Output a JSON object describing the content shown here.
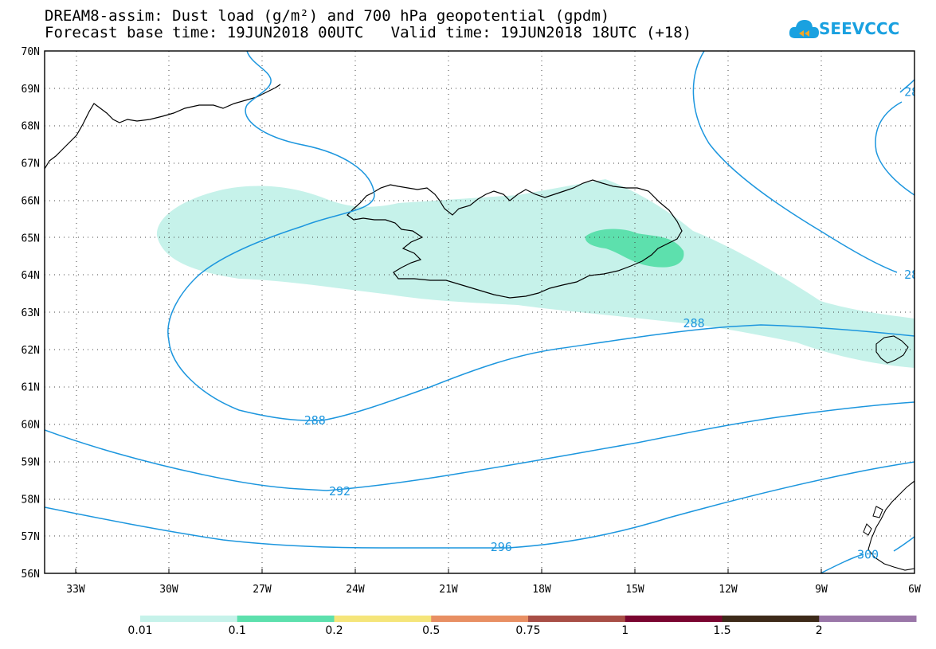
{
  "title_line1": "DREAM8-assim: Dust load (g/m²) and 700 hPa geopotential (gpdm)",
  "title_line2": "Forecast base time: 19JUN2018 00UTC   Valid time: 19JUN2018 18UTC (+18)",
  "logo": {
    "text": "SEEVCCC",
    "icon": "cloud-logo-icon",
    "color": "#1aa1e0"
  },
  "map": {
    "lat_labels": [
      "70N",
      "69N",
      "68N",
      "67N",
      "66N",
      "65N",
      "64N",
      "63N",
      "62N",
      "61N",
      "60N",
      "59N",
      "58N",
      "57N",
      "56N"
    ],
    "lon_labels": [
      "33W",
      "30W",
      "27W",
      "24W",
      "21W",
      "18W",
      "15W",
      "12W",
      "9W",
      "6W"
    ],
    "contour_color": "#1c96de",
    "contour_labels": [
      {
        "text": "288",
        "lon": -25.3,
        "lat": 60.1
      },
      {
        "text": "288",
        "lon": -13.1,
        "lat": 62.7
      },
      {
        "text": "292",
        "lon": -24.5,
        "lat": 58.2
      },
      {
        "text": "296",
        "lon": -19.3,
        "lat": 56.7
      },
      {
        "text": "300",
        "lon": -7.5,
        "lat": 56.5
      },
      {
        "text": "28",
        "lon": -6.1,
        "lat": 68.9
      },
      {
        "text": "28",
        "lon": -6.1,
        "lat": 64.0
      }
    ]
  },
  "legend": {
    "colors": [
      "#c6f2ea",
      "#5de0ad",
      "#f5e57a",
      "#e88f63",
      "#a84e46",
      "#7a0530",
      "#3d2a19",
      "#9a76a8"
    ],
    "labels": [
      "0.01",
      "0.1",
      "0.2",
      "0.5",
      "0.75",
      "1",
      "1.5",
      "2"
    ]
  }
}
